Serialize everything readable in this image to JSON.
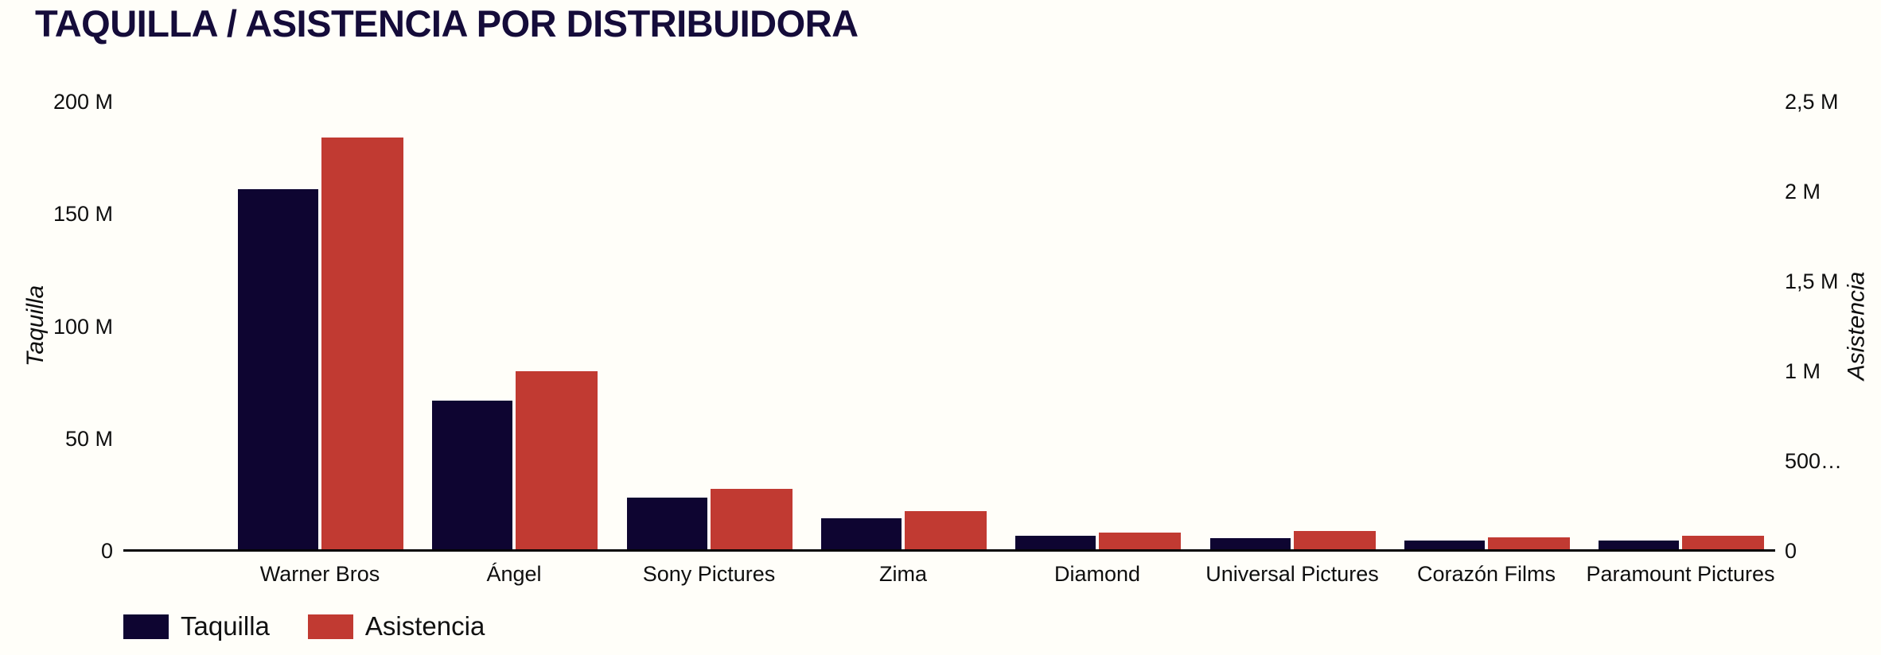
{
  "chart_data": {
    "type": "bar",
    "title": "TAQUILLA / ASISTENCIA POR DISTRIBUIDORA",
    "title_color": "#150c3a",
    "background_color": "#fffef9",
    "grid": "off",
    "categories": [
      "Warner Bros",
      "Ángel",
      "Sony Pictures",
      "Zima",
      "Diamond",
      "Universal Pictures",
      "Corazón Films",
      "Paramount Pictures"
    ],
    "series": [
      {
        "name": "Taquilla",
        "axis": "left",
        "color": "#0e0531",
        "values_millions": [
          161,
          67,
          23.7,
          14.5,
          6.7,
          5.7,
          4.6,
          4.6
        ]
      },
      {
        "name": "Asistencia",
        "axis": "right",
        "color": "#c13a32",
        "values_millions": [
          2.3,
          1.0,
          0.345,
          0.22,
          0.1,
          0.11,
          0.075,
          0.084
        ]
      }
    ],
    "axes": {
      "left": {
        "title": "Taquilla",
        "min_millions": 0,
        "max_millions": 200,
        "tick_labels": [
          "200 M",
          "150 M",
          "100 M",
          "50 M",
          "0"
        ]
      },
      "right": {
        "title": "Asistencia",
        "min_millions": 0,
        "max_millions": 2.5,
        "tick_labels": [
          "2,5 M",
          "2 M",
          "1,5 M",
          "1 M",
          "500…",
          "0"
        ]
      }
    },
    "legend": {
      "position": "bottom-left",
      "items": [
        "Taquilla",
        "Asistencia"
      ]
    }
  }
}
